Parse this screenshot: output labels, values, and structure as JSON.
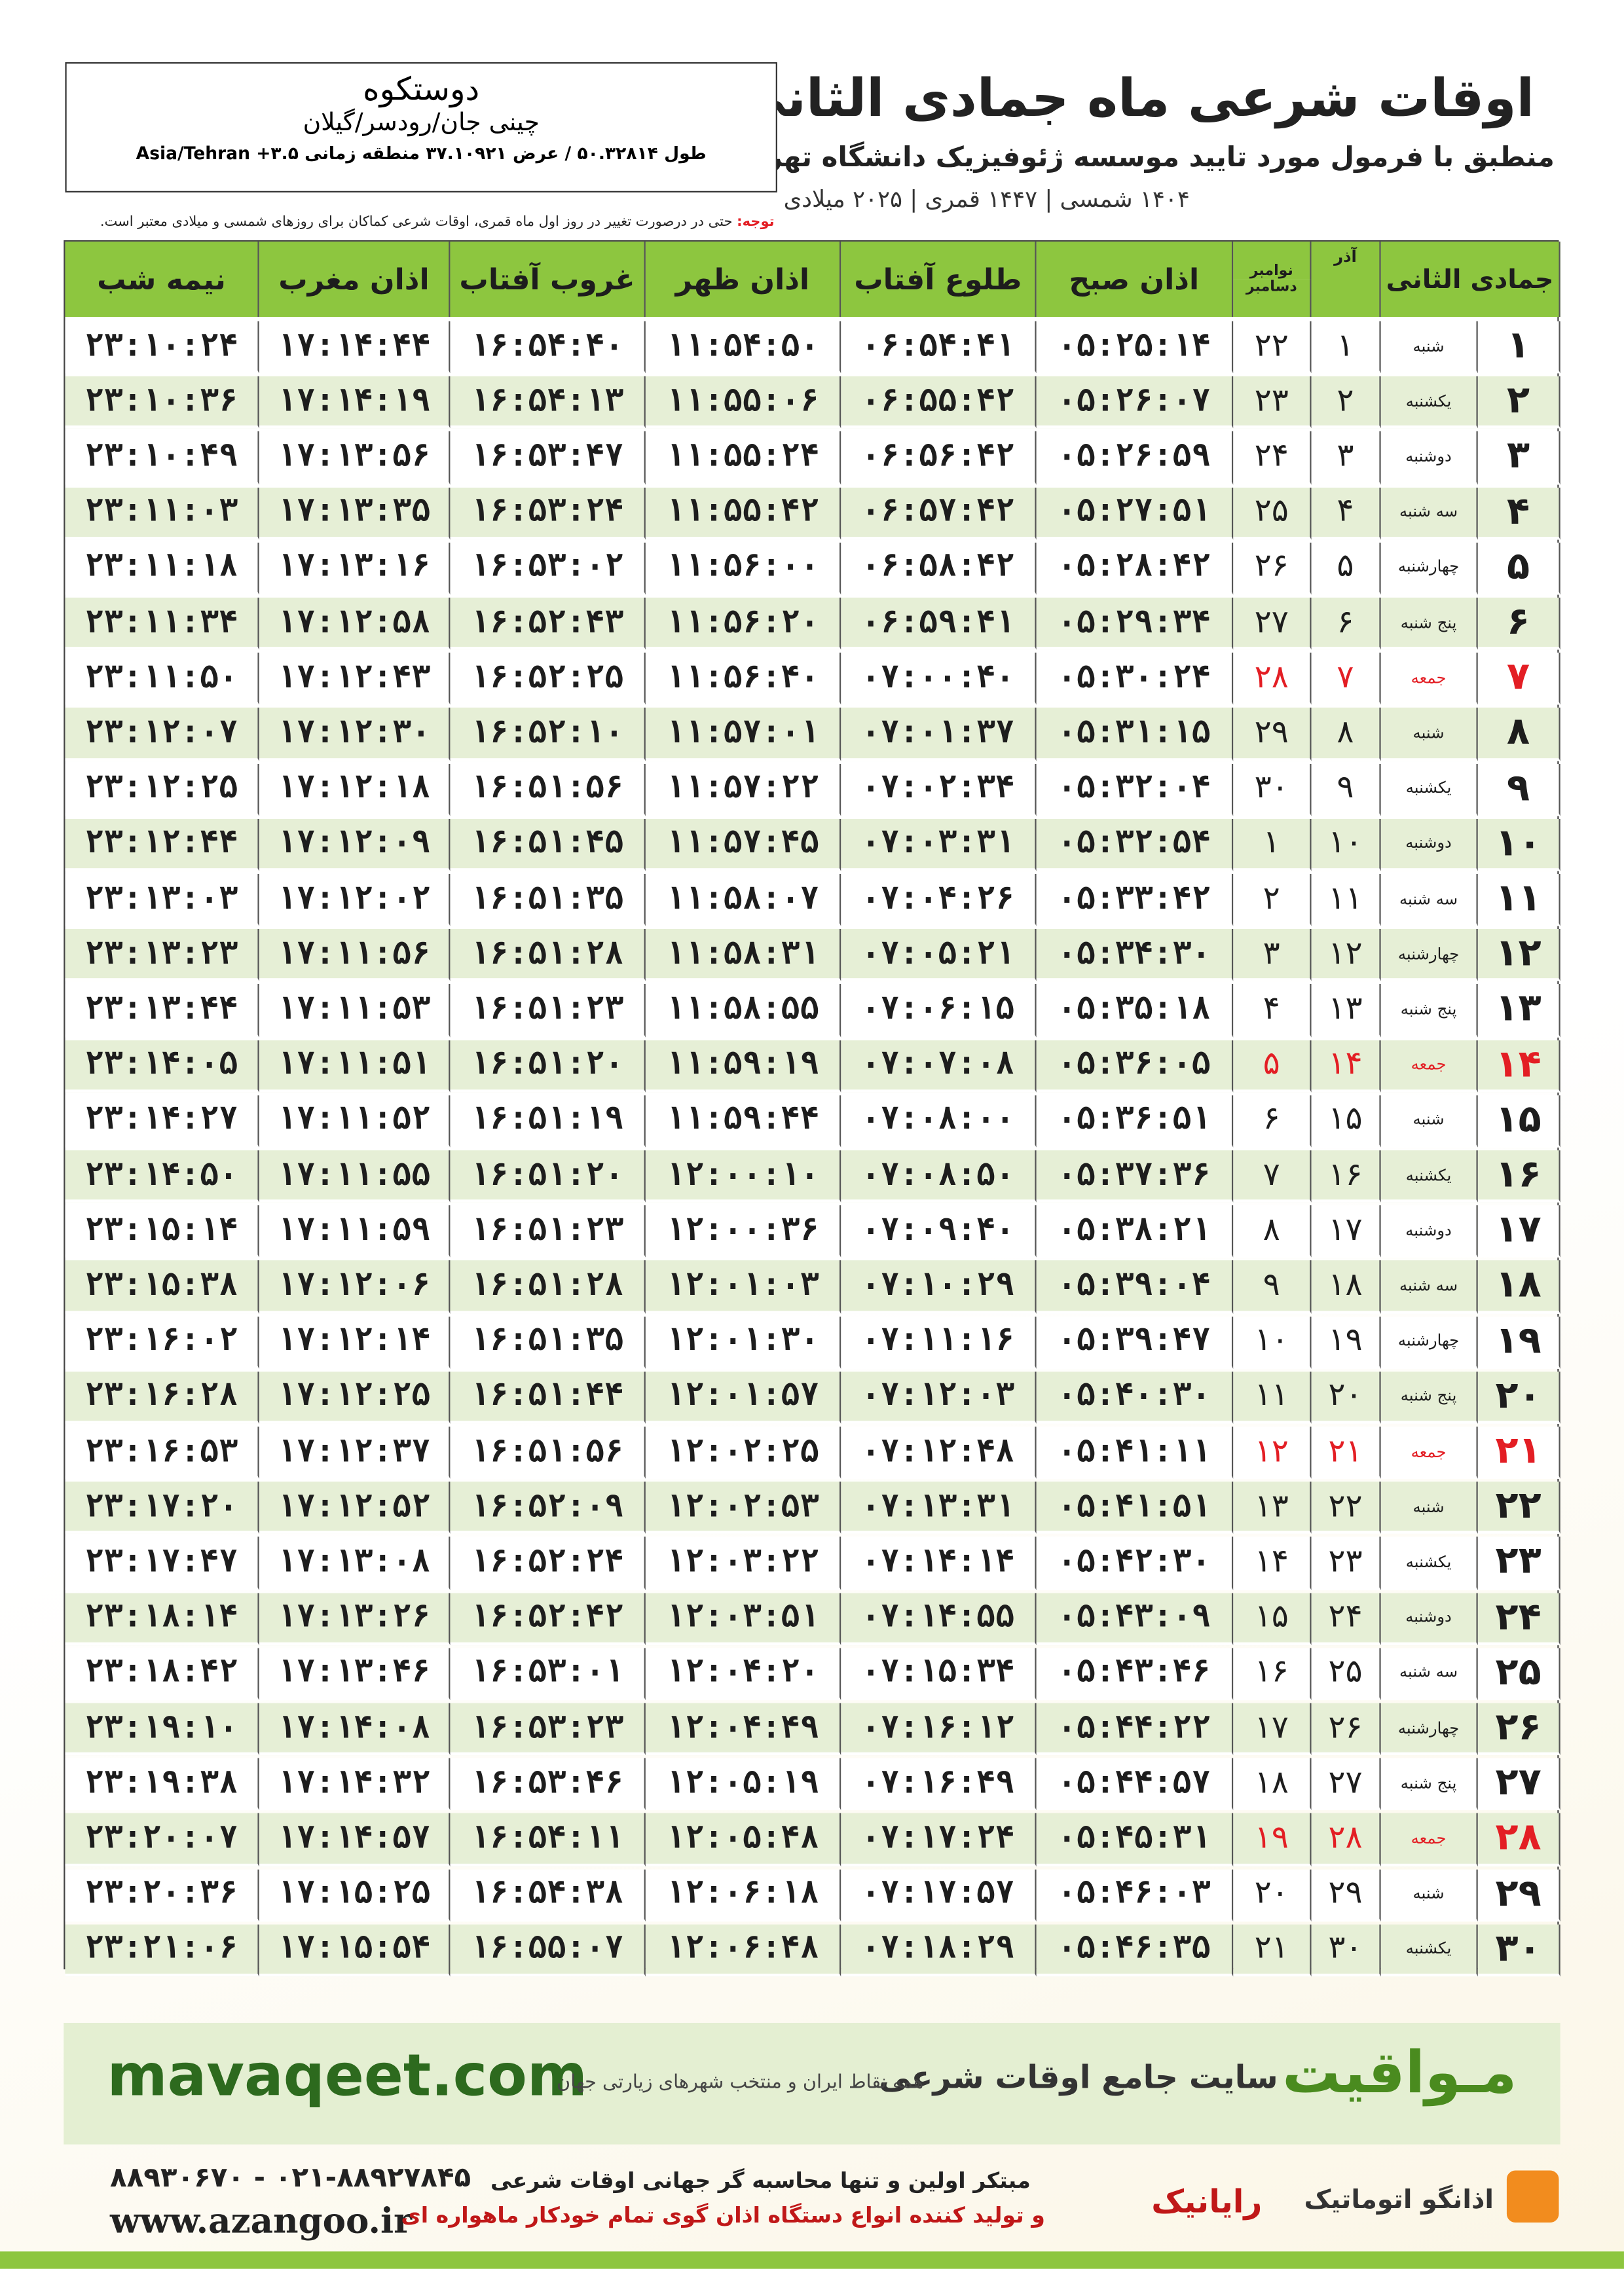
{
  "header": {
    "title": "اوقات شرعی ماه جمادی الثانی",
    "subtitle": "منطبق با فرمول مورد تایید موسسه ژئوفیزیک دانشگاه تهران",
    "years": "۱۴۰۴ شمسی | ۱۴۴۷ قمری | ۲۰۲۵ میلادی"
  },
  "location": {
    "city": "دوستکوه",
    "region": "چینی جان/رودسر/گیلان",
    "coords": "طول ۵۰.۳۲۸۱۴ / عرض ۳۷.۱۰۹۲۱ منطقه زمانی ۳.۵+ Asia/Tehran"
  },
  "note": {
    "label": "توجه:",
    "text": "حتی در درصورت تغییر در روز اول ماه قمری، اوقات شرعی کماکان برای روزهای شمسی و میلادی معتبر است."
  },
  "table": {
    "headers": [
      "جمادی الثانی",
      "آذر",
      "نوامبر",
      "دسامبر",
      "اذان صبح",
      "طلوع آفتاب",
      "اذان ظهر",
      "غروب آفتاب",
      "اذان مغرب",
      "نیمه شب"
    ],
    "highlight_color": "#e31e24",
    "rows": [
      {
        "cells": [
          "۱",
          "شنبه",
          "۱",
          "۲۲",
          "۰۵:۲۵:۱۴",
          "۰۶:۵۴:۴۱",
          "۱۱:۵۴:۵۰",
          "۱۶:۵۴:۴۰",
          "۱۷:۱۴:۴۴",
          "۲۳:۱۰:۲۴"
        ]
      },
      {
        "cells": [
          "۲",
          "یکشنبه",
          "۲",
          "۲۳",
          "۰۵:۲۶:۰۷",
          "۰۶:۵۵:۴۲",
          "۱۱:۵۵:۰۶",
          "۱۶:۵۴:۱۳",
          "۱۷:۱۴:۱۹",
          "۲۳:۱۰:۳۶"
        ]
      },
      {
        "cells": [
          "۳",
          "دوشنبه",
          "۳",
          "۲۴",
          "۰۵:۲۶:۵۹",
          "۰۶:۵۶:۴۲",
          "۱۱:۵۵:۲۴",
          "۱۶:۵۳:۴۷",
          "۱۷:۱۳:۵۶",
          "۲۳:۱۰:۴۹"
        ]
      },
      {
        "cells": [
          "۴",
          "سه شنبه",
          "۴",
          "۲۵",
          "۰۵:۲۷:۵۱",
          "۰۶:۵۷:۴۲",
          "۱۱:۵۵:۴۲",
          "۱۶:۵۳:۲۴",
          "۱۷:۱۳:۳۵",
          "۲۳:۱۱:۰۳"
        ]
      },
      {
        "cells": [
          "۵",
          "چهارشنبه",
          "۵",
          "۲۶",
          "۰۵:۲۸:۴۲",
          "۰۶:۵۸:۴۲",
          "۱۱:۵۶:۰۰",
          "۱۶:۵۳:۰۲",
          "۱۷:۱۳:۱۶",
          "۲۳:۱۱:۱۸"
        ]
      },
      {
        "cells": [
          "۶",
          "پنج شنبه",
          "۶",
          "۲۷",
          "۰۵:۲۹:۳۴",
          "۰۶:۵۹:۴۱",
          "۱۱:۵۶:۲۰",
          "۱۶:۵۲:۴۳",
          "۱۷:۱۲:۵۸",
          "۲۳:۱۱:۳۴"
        ]
      },
      {
        "cells": [
          "۷",
          "جمعه",
          "۷",
          "۲۸",
          "۰۵:۳۰:۲۴",
          "۰۷:۰۰:۴۰",
          "۱۱:۵۶:۴۰",
          "۱۶:۵۲:۲۵",
          "۱۷:۱۲:۴۳",
          "۲۳:۱۱:۵۰"
        ],
        "highlight": true
      },
      {
        "cells": [
          "۸",
          "شنبه",
          "۸",
          "۲۹",
          "۰۵:۳۱:۱۵",
          "۰۷:۰۱:۳۷",
          "۱۱:۵۷:۰۱",
          "۱۶:۵۲:۱۰",
          "۱۷:۱۲:۳۰",
          "۲۳:۱۲:۰۷"
        ]
      },
      {
        "cells": [
          "۹",
          "یکشنبه",
          "۹",
          "۳۰",
          "۰۵:۳۲:۰۴",
          "۰۷:۰۲:۳۴",
          "۱۱:۵۷:۲۲",
          "۱۶:۵۱:۵۶",
          "۱۷:۱۲:۱۸",
          "۲۳:۱۲:۲۵"
        ]
      },
      {
        "cells": [
          "۱۰",
          "دوشنبه",
          "۱۰",
          "۱",
          "۰۵:۳۲:۵۴",
          "۰۷:۰۳:۳۱",
          "۱۱:۵۷:۴۵",
          "۱۶:۵۱:۴۵",
          "۱۷:۱۲:۰۹",
          "۲۳:۱۲:۴۴"
        ]
      },
      {
        "cells": [
          "۱۱",
          "سه شنبه",
          "۱۱",
          "۲",
          "۰۵:۳۳:۴۲",
          "۰۷:۰۴:۲۶",
          "۱۱:۵۸:۰۷",
          "۱۶:۵۱:۳۵",
          "۱۷:۱۲:۰۲",
          "۲۳:۱۳:۰۳"
        ]
      },
      {
        "cells": [
          "۱۲",
          "چهارشنبه",
          "۱۲",
          "۳",
          "۰۵:۳۴:۳۰",
          "۰۷:۰۵:۲۱",
          "۱۱:۵۸:۳۱",
          "۱۶:۵۱:۲۸",
          "۱۷:۱۱:۵۶",
          "۲۳:۱۳:۲۳"
        ]
      },
      {
        "cells": [
          "۱۳",
          "پنج شنبه",
          "۱۳",
          "۴",
          "۰۵:۳۵:۱۸",
          "۰۷:۰۶:۱۵",
          "۱۱:۵۸:۵۵",
          "۱۶:۵۱:۲۳",
          "۱۷:۱۱:۵۳",
          "۲۳:۱۳:۴۴"
        ]
      },
      {
        "cells": [
          "۱۴",
          "جمعه",
          "۱۴",
          "۵",
          "۰۵:۳۶:۰۵",
          "۰۷:۰۷:۰۸",
          "۱۱:۵۹:۱۹",
          "۱۶:۵۱:۲۰",
          "۱۷:۱۱:۵۱",
          "۲۳:۱۴:۰۵"
        ],
        "highlight": true
      },
      {
        "cells": [
          "۱۵",
          "شنبه",
          "۱۵",
          "۶",
          "۰۵:۳۶:۵۱",
          "۰۷:۰۸:۰۰",
          "۱۱:۵۹:۴۴",
          "۱۶:۵۱:۱۹",
          "۱۷:۱۱:۵۲",
          "۲۳:۱۴:۲۷"
        ]
      },
      {
        "cells": [
          "۱۶",
          "یکشنبه",
          "۱۶",
          "۷",
          "۰۵:۳۷:۳۶",
          "۰۷:۰۸:۵۰",
          "۱۲:۰۰:۱۰",
          "۱۶:۵۱:۲۰",
          "۱۷:۱۱:۵۵",
          "۲۳:۱۴:۵۰"
        ]
      },
      {
        "cells": [
          "۱۷",
          "دوشنبه",
          "۱۷",
          "۸",
          "۰۵:۳۸:۲۱",
          "۰۷:۰۹:۴۰",
          "۱۲:۰۰:۳۶",
          "۱۶:۵۱:۲۳",
          "۱۷:۱۱:۵۹",
          "۲۳:۱۵:۱۴"
        ]
      },
      {
        "cells": [
          "۱۸",
          "سه شنبه",
          "۱۸",
          "۹",
          "۰۵:۳۹:۰۴",
          "۰۷:۱۰:۲۹",
          "۱۲:۰۱:۰۳",
          "۱۶:۵۱:۲۸",
          "۱۷:۱۲:۰۶",
          "۲۳:۱۵:۳۸"
        ]
      },
      {
        "cells": [
          "۱۹",
          "چهارشنبه",
          "۱۹",
          "۱۰",
          "۰۵:۳۹:۴۷",
          "۰۷:۱۱:۱۶",
          "۱۲:۰۱:۳۰",
          "۱۶:۵۱:۳۵",
          "۱۷:۱۲:۱۴",
          "۲۳:۱۶:۰۲"
        ]
      },
      {
        "cells": [
          "۲۰",
          "پنج شنبه",
          "۲۰",
          "۱۱",
          "۰۵:۴۰:۳۰",
          "۰۷:۱۲:۰۳",
          "۱۲:۰۱:۵۷",
          "۱۶:۵۱:۴۴",
          "۱۷:۱۲:۲۵",
          "۲۳:۱۶:۲۸"
        ]
      },
      {
        "cells": [
          "۲۱",
          "جمعه",
          "۲۱",
          "۱۲",
          "۰۵:۴۱:۱۱",
          "۰۷:۱۲:۴۸",
          "۱۲:۰۲:۲۵",
          "۱۶:۵۱:۵۶",
          "۱۷:۱۲:۳۷",
          "۲۳:۱۶:۵۳"
        ],
        "highlight": true
      },
      {
        "cells": [
          "۲۲",
          "شنبه",
          "۲۲",
          "۱۳",
          "۰۵:۴۱:۵۱",
          "۰۷:۱۳:۳۱",
          "۱۲:۰۲:۵۳",
          "۱۶:۵۲:۰۹",
          "۱۷:۱۲:۵۲",
          "۲۳:۱۷:۲۰"
        ]
      },
      {
        "cells": [
          "۲۳",
          "یکشنبه",
          "۲۳",
          "۱۴",
          "۰۵:۴۲:۳۰",
          "۰۷:۱۴:۱۴",
          "۱۲:۰۳:۲۲",
          "۱۶:۵۲:۲۴",
          "۱۷:۱۳:۰۸",
          "۲۳:۱۷:۴۷"
        ]
      },
      {
        "cells": [
          "۲۴",
          "دوشنبه",
          "۲۴",
          "۱۵",
          "۰۵:۴۳:۰۹",
          "۰۷:۱۴:۵۵",
          "۱۲:۰۳:۵۱",
          "۱۶:۵۲:۴۲",
          "۱۷:۱۳:۲۶",
          "۲۳:۱۸:۱۴"
        ]
      },
      {
        "cells": [
          "۲۵",
          "سه شنبه",
          "۲۵",
          "۱۶",
          "۰۵:۴۳:۴۶",
          "۰۷:۱۵:۳۴",
          "۱۲:۰۴:۲۰",
          "۱۶:۵۳:۰۱",
          "۱۷:۱۳:۴۶",
          "۲۳:۱۸:۴۲"
        ]
      },
      {
        "cells": [
          "۲۶",
          "چهارشنبه",
          "۲۶",
          "۱۷",
          "۰۵:۴۴:۲۲",
          "۰۷:۱۶:۱۲",
          "۱۲:۰۴:۴۹",
          "۱۶:۵۳:۲۳",
          "۱۷:۱۴:۰۸",
          "۲۳:۱۹:۱۰"
        ]
      },
      {
        "cells": [
          "۲۷",
          "پنج شنبه",
          "۲۷",
          "۱۸",
          "۰۵:۴۴:۵۷",
          "۰۷:۱۶:۴۹",
          "۱۲:۰۵:۱۹",
          "۱۶:۵۳:۴۶",
          "۱۷:۱۴:۳۲",
          "۲۳:۱۹:۳۸"
        ]
      },
      {
        "cells": [
          "۲۸",
          "جمعه",
          "۲۸",
          "۱۹",
          "۰۵:۴۵:۳۱",
          "۰۷:۱۷:۲۴",
          "۱۲:۰۵:۴۸",
          "۱۶:۵۴:۱۱",
          "۱۷:۱۴:۵۷",
          "۲۳:۲۰:۰۷"
        ],
        "highlight": true
      },
      {
        "cells": [
          "۲۹",
          "شنبه",
          "۲۹",
          "۲۰",
          "۰۵:۴۶:۰۳",
          "۰۷:۱۷:۵۷",
          "۱۲:۰۶:۱۸",
          "۱۶:۵۴:۳۸",
          "۱۷:۱۵:۲۵",
          "۲۳:۲۰:۳۶"
        ]
      },
      {
        "cells": [
          "۳۰",
          "یکشنبه",
          "۳۰",
          "۲۱",
          "۰۵:۴۶:۳۵",
          "۰۷:۱۸:۲۹",
          "۱۲:۰۶:۴۸",
          "۱۶:۵۵:۰۷",
          "۱۷:۱۵:۵۴",
          "۲۳:۲۱:۰۶"
        ]
      }
    ]
  },
  "banner": {
    "url": "mavaqeet.com",
    "brand": "مـواقیت",
    "tagline": "سایت جامع اوقات شرعی",
    "coverage": "همه نقاط ایران و منتخب شهرهای زیارتی جهان"
  },
  "footer": {
    "phone": "۰۲۱-۸۸۹۲۷۸۴۵ - ۸۸۹۳۰۶۷۰",
    "website": "www.azangoo.ir",
    "line1": "مبتکر اولین و تنها محاسبه گر جهانی اوقات شرعی",
    "line2": "و تولید کننده انواع دستگاه اذان گوی تمام خودکار ماهواره ای",
    "logo1": "رایانیک",
    "logo2": "اذانگو اتوماتیک"
  }
}
